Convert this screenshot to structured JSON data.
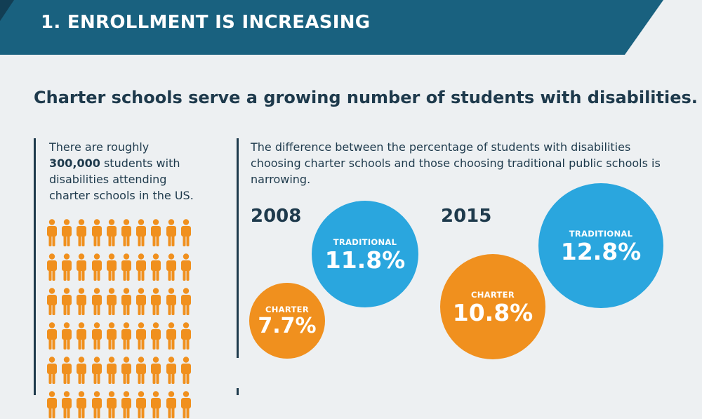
{
  "banner": {
    "title": "1. ENROLLMENT IS INCREASING",
    "color_main": "#19617f",
    "color_dark": "#123e54"
  },
  "headline": "Charter schools serve a growing number of students with disabilities.",
  "left_panel": {
    "text_before": "There are roughly ",
    "highlight": "300,000",
    "text_after": " students with disabilities attending charter schools in the US.",
    "icon": "person-icon",
    "icon_color": "#f0901e",
    "icon_columns": 10,
    "icon_rows_visible": 5
  },
  "right_panel": {
    "description": "The difference between the percentage of students with disabilities choosing charter schools and those choosing traditional public schools is narrowing.",
    "comparisons": [
      {
        "year": "2008",
        "traditional": {
          "label": "TRADITIONAL",
          "value": "11.8%"
        },
        "charter": {
          "label": "CHARTER",
          "value": "7.7%"
        }
      },
      {
        "year": "2015",
        "traditional": {
          "label": "TRADITIONAL",
          "value": "12.8%"
        },
        "charter": {
          "label": "CHARTER",
          "value": "10.8%"
        }
      }
    ],
    "colors": {
      "charter": "#f0901e",
      "traditional": "#2aa6de"
    }
  }
}
